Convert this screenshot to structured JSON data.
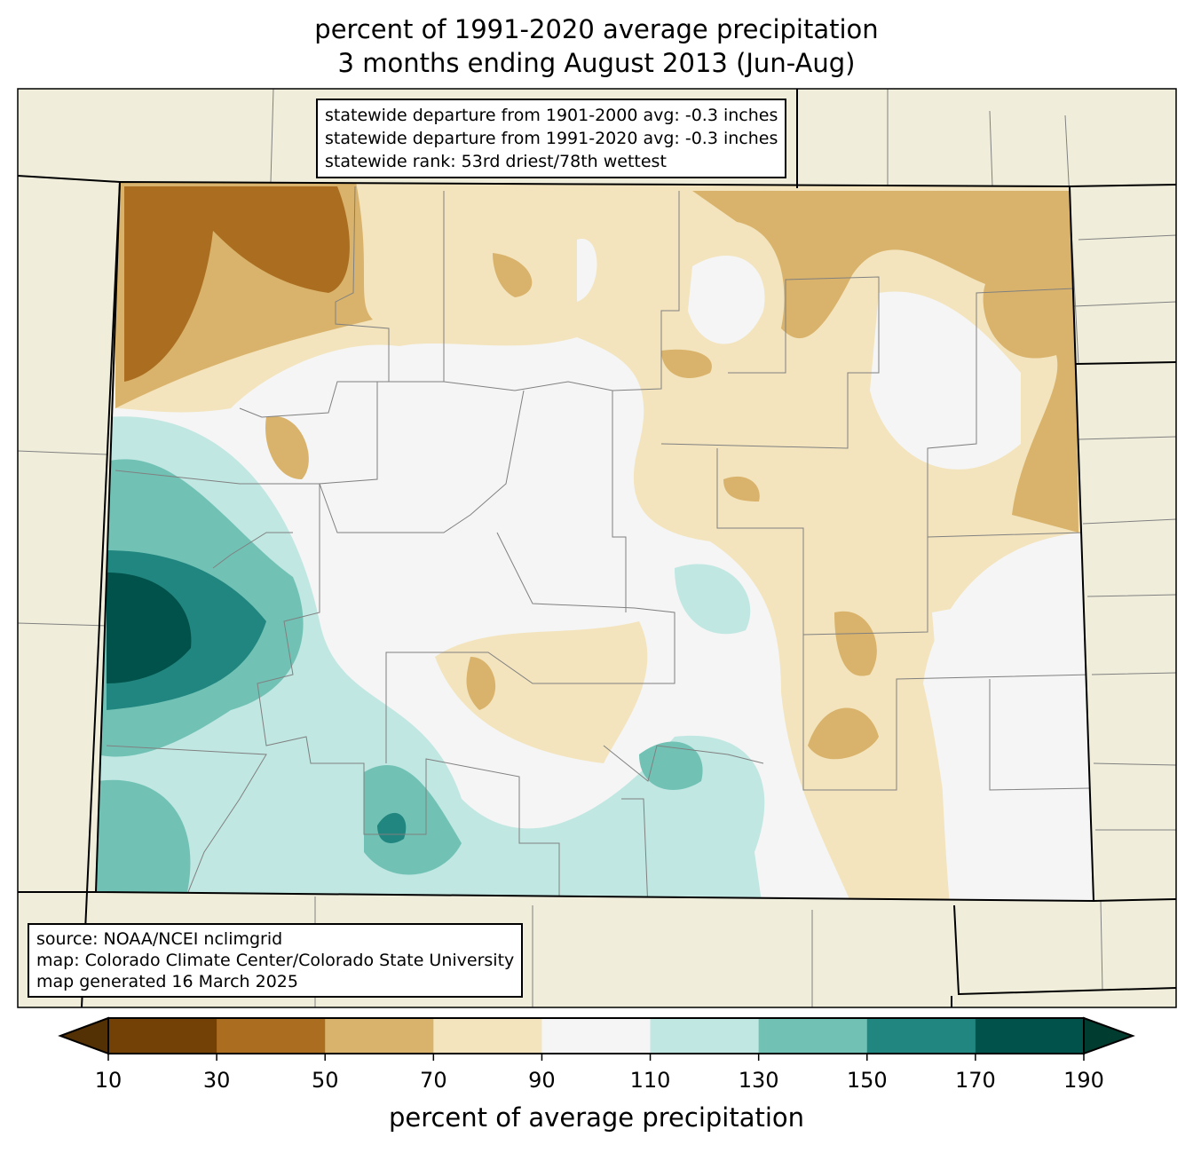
{
  "title": {
    "line1": "percent of 1991-2020 average precipitation",
    "line2": "3 months ending August 2013 (Jun-Aug)"
  },
  "stats_box": {
    "line1": "statewide departure from 1901-2000 avg: -0.3 inches",
    "line2": "statewide departure from 1991-2020 avg: -0.3 inches",
    "line3": "statewide rank: 53rd driest/78th wettest"
  },
  "source_box": {
    "line1": "source: NOAA/NCEI nclimgrid",
    "line2": "map: Colorado Climate Center/Colorado State University",
    "line3": "map generated 16 March 2025"
  },
  "colorbar": {
    "label": "percent of average precipitation",
    "ticks": [
      "10",
      "30",
      "50",
      "70",
      "90",
      "110",
      "130",
      "150",
      "170",
      "190"
    ],
    "under_color": "#543005",
    "over_color": "#003c30",
    "colors": [
      "#734005",
      "#ab6e21",
      "#d9b36b",
      "#f3e4bd",
      "#f4f5f4",
      "#c0e7e2",
      "#71c2b5",
      "#218680",
      "#01524a"
    ]
  },
  "colors": {
    "land": "#f0eedb",
    "county_line": "#808080"
  }
}
